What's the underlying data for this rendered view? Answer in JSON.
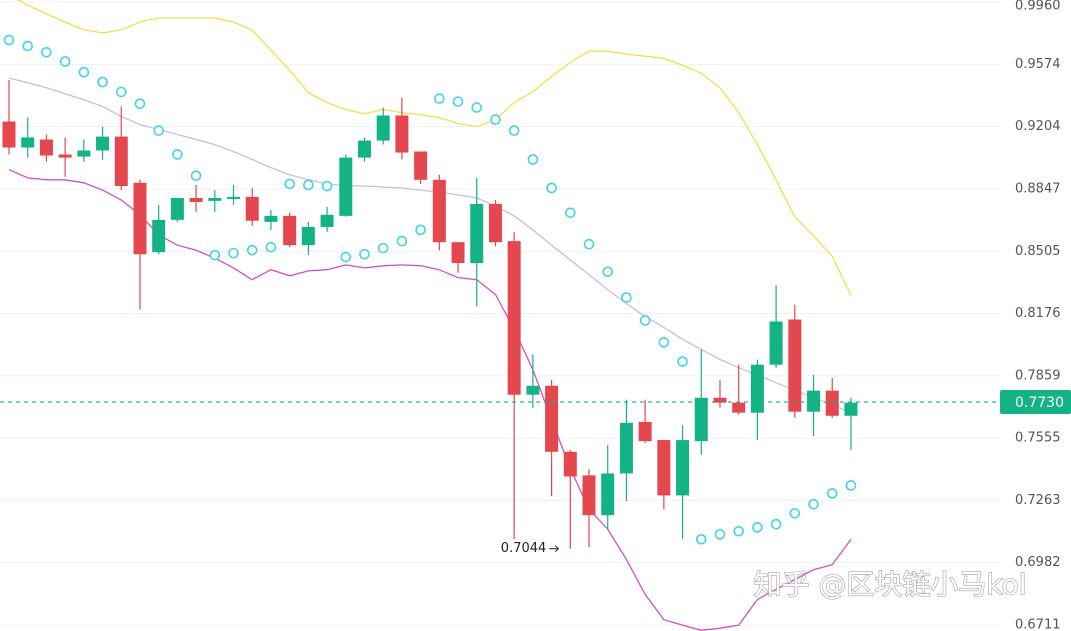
{
  "chart_data": {
    "type": "candlestick",
    "log_scale": true,
    "ylim": [
      0.6686,
      0.9973
    ],
    "yticks": [
      {
        "value": 0.996,
        "label": "0.9960"
      },
      0.9574,
      0.9204,
      0.8847,
      0.8505,
      0.8176,
      0.7859,
      0.7555,
      0.7263,
      0.6982,
      0.6711
    ],
    "grid": true,
    "up_color": "#13b386",
    "down_color": "#e5474f",
    "open": [
      0.9234,
      0.9083,
      0.9129,
      0.9043,
      0.9031,
      0.9066,
      0.9146,
      0.8882,
      0.85,
      0.8676,
      0.8797,
      0.8781,
      0.8792,
      0.8803,
      0.8665,
      0.8698,
      0.8538,
      0.8637,
      0.8698,
      0.9025,
      0.9123,
      0.9269,
      0.906,
      0.8899,
      0.8554,
      0.8442,
      0.8764,
      0.856,
      0.7766,
      0.781,
      0.749,
      0.7379,
      0.7195,
      0.7388,
      0.7633,
      0.7546,
      0.7286,
      0.7541,
      0.7751,
      0.7727,
      0.7678,
      0.7915,
      0.8145,
      0.7683,
      0.7786,
      0.7663
    ],
    "high": [
      0.948,
      0.9257,
      0.9158,
      0.9141,
      0.9129,
      0.9204,
      0.9322,
      0.8899,
      0.8759,
      0.8797,
      0.887,
      0.8841,
      0.887,
      0.8853,
      0.8731,
      0.8715,
      0.8665,
      0.8748,
      0.9043,
      0.9141,
      0.9316,
      0.9374,
      0.906,
      0.8928,
      0.8554,
      0.891,
      0.8786,
      0.861,
      0.7966,
      0.7839,
      0.7499,
      0.7407,
      0.7523,
      0.7742,
      0.7742,
      0.7546,
      0.7619,
      0.7992,
      0.7839,
      0.7915,
      0.7941,
      0.8324,
      0.8222,
      0.7864,
      0.7849,
      0.7751
    ],
    "low": [
      0.9043,
      0.9025,
      0.9002,
      0.8916,
      0.9002,
      0.9014,
      0.8841,
      0.8197,
      0.8489,
      0.8665,
      0.872,
      0.872,
      0.8759,
      0.8643,
      0.8621,
      0.8527,
      0.8484,
      0.861,
      0.8693,
      0.9002,
      0.91,
      0.9014,
      0.8876,
      0.851,
      0.839,
      0.8213,
      0.8532,
      0.7086,
      0.7702,
      0.7282,
      0.7044,
      0.705,
      0.7132,
      0.7258,
      0.7532,
      0.7222,
      0.7086,
      0.7476,
      0.7702,
      0.7668,
      0.7546,
      0.79,
      0.7653,
      0.7565,
      0.7653,
      0.7499
    ],
    "close": [
      0.9083,
      0.9141,
      0.9037,
      0.9025,
      0.9066,
      0.9146,
      0.8864,
      0.8489,
      0.8676,
      0.8797,
      0.8775,
      0.8797,
      0.8803,
      0.8671,
      0.8698,
      0.8538,
      0.8637,
      0.8704,
      0.9025,
      0.9123,
      0.9269,
      0.9054,
      0.8899,
      0.8554,
      0.8442,
      0.8764,
      0.8554,
      0.7766,
      0.781,
      0.749,
      0.7374,
      0.7195,
      0.7388,
      0.7629,
      0.7541,
      0.7286,
      0.7546,
      0.7751,
      0.7727,
      0.7678,
      0.7915,
      0.8135,
      0.7683,
      0.7786,
      0.7663,
      0.7727
    ],
    "overlays": {
      "bb_upper": {
        "color": "#f2e04a",
        "values": [
          1.0004,
          0.9941,
          0.9885,
          0.9835,
          0.9786,
          0.9767,
          0.9786,
          0.9835,
          0.986,
          0.986,
          0.986,
          0.986,
          0.9835,
          0.9786,
          0.9661,
          0.9539,
          0.9404,
          0.9345,
          0.9304,
          0.928,
          0.9304,
          0.9286,
          0.9274,
          0.9257,
          0.9222,
          0.9204,
          0.9245,
          0.9345,
          0.9409,
          0.9503,
          0.9586,
          0.9655,
          0.9655,
          0.9636,
          0.9624,
          0.9611,
          0.9568,
          0.9521,
          0.9433,
          0.9286,
          0.91,
          0.8899,
          0.8693,
          0.8588,
          0.8479,
          0.827
        ]
      },
      "bb_middle": {
        "color": "#c9bfdc",
        "values": [
          0.9492,
          0.9463,
          0.9433,
          0.9398,
          0.9363,
          0.9322,
          0.9263,
          0.9216,
          0.9187,
          0.9158,
          0.9129,
          0.91,
          0.906,
          0.9014,
          0.8968,
          0.8928,
          0.8899,
          0.8876,
          0.8864,
          0.8864,
          0.8858,
          0.8853,
          0.8841,
          0.883,
          0.8814,
          0.8797,
          0.8753,
          0.8698,
          0.8621,
          0.8538,
          0.8458,
          0.838,
          0.8301,
          0.8228,
          0.8161,
          0.8104,
          0.8043,
          0.7992,
          0.7941,
          0.79,
          0.7864,
          0.7825,
          0.779,
          0.7751,
          0.7717,
          0.7678
        ]
      },
      "bb_lower": {
        "color": "#d64fc0",
        "values": [
          0.8956,
          0.891,
          0.8899,
          0.8899,
          0.8882,
          0.8841,
          0.8786,
          0.8704,
          0.8593,
          0.8538,
          0.851,
          0.8468,
          0.8416,
          0.8353,
          0.8406,
          0.8374,
          0.84,
          0.8406,
          0.8432,
          0.8416,
          0.8427,
          0.8432,
          0.8427,
          0.8406,
          0.8364,
          0.8353,
          0.8275,
          0.8094,
          0.789,
          0.7643,
          0.7411,
          0.7222,
          0.7132,
          0.6996,
          0.6843,
          0.6734,
          0.6711,
          0.6689,
          0.6698,
          0.6711,
          0.6821,
          0.6865,
          0.6908,
          0.6951,
          0.6973,
          0.7086
        ]
      },
      "sar": {
        "color": "#3fd5e8",
        "values": [
          0.9723,
          0.9686,
          0.9648,
          0.9592,
          0.9527,
          0.9468,
          0.9409,
          0.9339,
          0.9181,
          0.9043,
          0.8922,
          0.8484,
          0.8495,
          0.8511,
          0.8527,
          0.8876,
          0.887,
          0.8864,
          0.8474,
          0.8489,
          0.8522,
          0.856,
          0.8621,
          0.9369,
          0.9351,
          0.9316,
          0.9245,
          0.9181,
          0.9014,
          0.8853,
          0.8715,
          0.8543,
          0.8395,
          0.8259,
          0.814,
          0.8028,
          0.7931,
          0.7086,
          0.7108,
          0.7122,
          0.714,
          0.7154,
          0.7204,
          0.7245,
          0.7295,
          0.7332
        ]
      }
    },
    "last_price": {
      "value": 0.773,
      "label": "0.7730",
      "color": "#13b386"
    },
    "watermark": "知乎 @区块链小马kol"
  }
}
